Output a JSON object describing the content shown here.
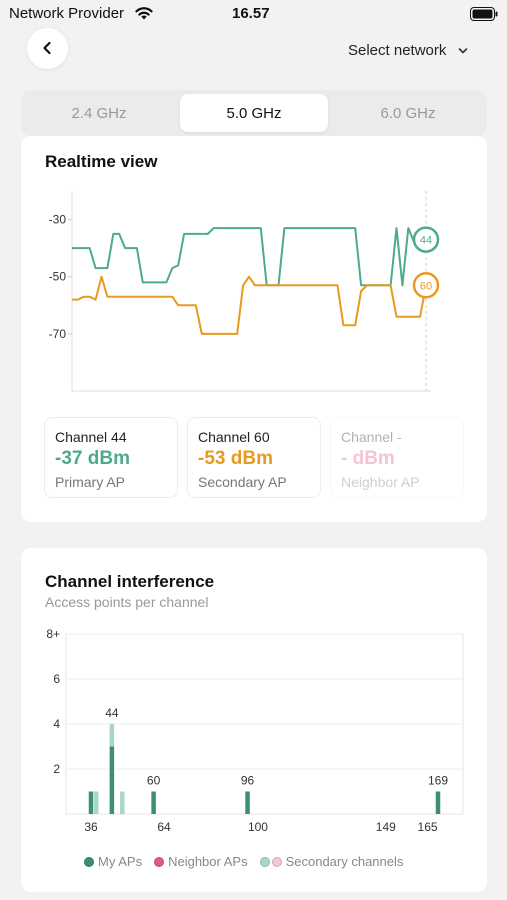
{
  "status": {
    "carrier": "Network Provider",
    "time": "16.57"
  },
  "header": {
    "network_select": "Select network"
  },
  "tabs": [
    {
      "label": "2.4 GHz",
      "active": false
    },
    {
      "label": "5.0 GHz",
      "active": true
    },
    {
      "label": "6.0 GHz",
      "active": false
    }
  ],
  "colors": {
    "primary": "#4daa8a",
    "secondary": "#e89a1e",
    "neighbor": "#e05a82",
    "secondary_channels": "#a8d7c3"
  },
  "realtime": {
    "title": "Realtime view",
    "channels": [
      {
        "title": "Channel 44",
        "value": "-37 dBm",
        "sub": "Primary AP"
      },
      {
        "title": "Channel 60",
        "value": "-53 dBm",
        "sub": "Secondary AP"
      },
      {
        "title": "Channel -",
        "value": "- dBm",
        "sub": "Neighbor AP"
      }
    ],
    "chart_data": {
      "type": "line",
      "ylim": [
        -90,
        -20
      ],
      "y_ticks": [
        -30,
        -50,
        -70
      ],
      "y_tick_labels": [
        "-30",
        "-50",
        "-70"
      ],
      "x": [
        0,
        1,
        2,
        3,
        4,
        5,
        6,
        7,
        8,
        9,
        10,
        11,
        12,
        13,
        14,
        15,
        16,
        17,
        18,
        19,
        20,
        21,
        22,
        23,
        24,
        25,
        26,
        27,
        28,
        29,
        30,
        31,
        32,
        33,
        34,
        35,
        36,
        37,
        38,
        39,
        40,
        41,
        42,
        43,
        44,
        45,
        46,
        47,
        48,
        49,
        50,
        51,
        52,
        53,
        54,
        55,
        56,
        57,
        58,
        59,
        60
      ],
      "series": [
        {
          "name": "44",
          "end_label": "44",
          "values": [
            -40,
            -40,
            -40,
            -40,
            -47,
            -47,
            -47,
            -35,
            -35,
            -40,
            -40,
            -40,
            -52,
            -52,
            -52,
            -52,
            -52,
            -47,
            -46,
            -35,
            -35,
            -35,
            -35,
            -35,
            -33,
            -33,
            -33,
            -33,
            -33,
            -33,
            -33,
            -33,
            -33,
            -53,
            -53,
            -53,
            -33,
            -33,
            -33,
            -33,
            -33,
            -33,
            -33,
            -33,
            -33,
            -33,
            -33,
            -33,
            -33,
            -53,
            -53,
            -53,
            -53,
            -53,
            -53,
            -33,
            -53,
            -33,
            -38,
            -38,
            -37
          ]
        },
        {
          "name": "60",
          "end_label": "60",
          "values": [
            -58,
            -58,
            -57,
            -57,
            -58,
            -50,
            -57,
            -57,
            -57,
            -57,
            -57,
            -57,
            -57,
            -57,
            -57,
            -57,
            -57,
            -57,
            -60,
            -60,
            -60,
            -60,
            -70,
            -70,
            -70,
            -70,
            -70,
            -70,
            -70,
            -53,
            -50,
            -53,
            -53,
            -53,
            -53,
            -53,
            -53,
            -53,
            -53,
            -53,
            -53,
            -53,
            -53,
            -53,
            -53,
            -53,
            -67,
            -67,
            -67,
            -55,
            -53,
            -53,
            -53,
            -53,
            -53,
            -64,
            -64,
            -64,
            -64,
            -64,
            -53
          ]
        }
      ]
    }
  },
  "interference": {
    "title": "Channel interference",
    "subtitle": "Access points per channel",
    "chart_data": {
      "type": "bar",
      "ylim": [
        0,
        8
      ],
      "y_ticks": [
        2,
        4,
        6,
        8
      ],
      "y_tick_labels": [
        "2",
        "4",
        "6",
        "8+"
      ],
      "x_ticks": [
        36,
        64,
        100,
        149,
        165
      ],
      "x_tick_labels": [
        "36",
        "64",
        "100",
        "149",
        "165"
      ],
      "bar_groups": [
        {
          "channel": 36,
          "label": "",
          "my_aps": 1,
          "secondary": [
            38
          ]
        },
        {
          "channel": 44,
          "label": "44",
          "my_aps": 3,
          "secondary_stack": 4,
          "secondary": [
            48
          ]
        },
        {
          "channel": 60,
          "label": "60",
          "my_aps": 1
        },
        {
          "channel": 96,
          "label": "96",
          "my_aps": 1
        },
        {
          "channel": 169,
          "label": "169",
          "my_aps": 1
        }
      ]
    },
    "legend": [
      {
        "label": "My APs"
      },
      {
        "label": "Neighbor APs"
      },
      {
        "label": "Secondary channels"
      }
    ]
  }
}
